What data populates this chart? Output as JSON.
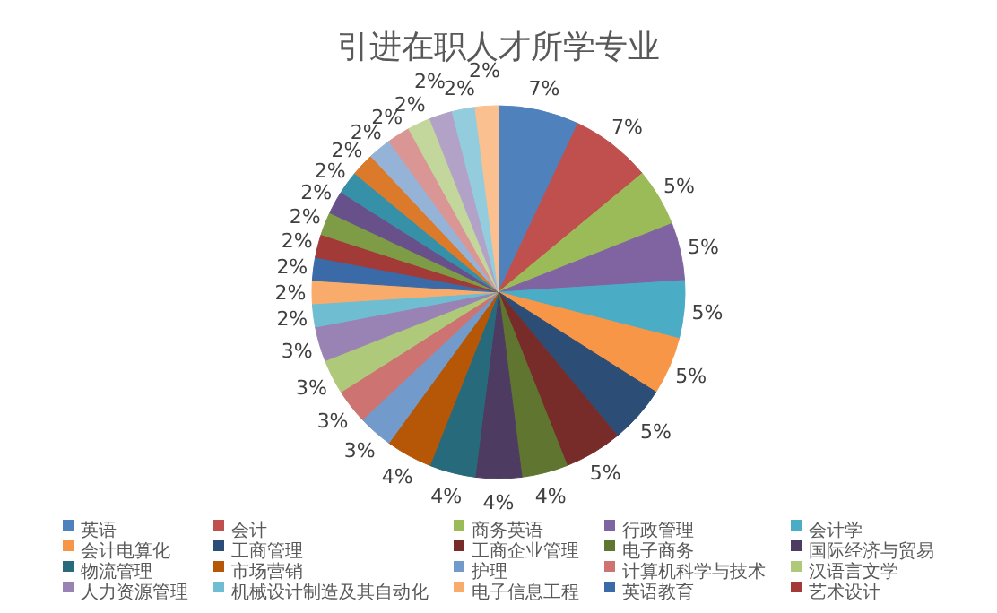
{
  "chart_data": {
    "type": "pie",
    "title": "引进在职人才所学专业",
    "categories": [
      "英语",
      "会计",
      "商务英语",
      "行政管理",
      "会计学",
      "会计电算化",
      "工商管理",
      "工商企业管理",
      "电子商务",
      "国际经济与贸易",
      "物流管理",
      "市场营销",
      "护理",
      "计算机科学与技术",
      "汉语言文学",
      "人力资源管理",
      "机械设计制造及其自动化",
      "电子信息工程",
      "英语教育",
      "艺术设计",
      null,
      null,
      null,
      null,
      null,
      null,
      null,
      null,
      null,
      null
    ],
    "values": [
      7,
      7,
      5,
      5,
      5,
      5,
      5,
      5,
      4,
      4,
      4,
      4,
      3,
      3,
      3,
      3,
      2,
      2,
      2,
      2,
      2,
      2,
      2,
      2,
      2,
      2,
      2,
      2,
      2,
      2
    ],
    "colors": [
      "#4f81bd",
      "#c0504d",
      "#9bbb59",
      "#8064a2",
      "#4bacc6",
      "#f79646",
      "#2c4d75",
      "#772c2a",
      "#5f7530",
      "#4d3b62",
      "#276a7c",
      "#b65708",
      "#729aca",
      "#cd7371",
      "#afc97a",
      "#9983b5",
      "#6fbdd1",
      "#f9ab6b",
      "#3a6aa8",
      "#a23a38",
      "#7e9c45",
      "#68508a",
      "#3590a8",
      "#dc7a2c",
      "#95b3d7",
      "#d99694",
      "#c3d69b",
      "#b3a2c7",
      "#93cddd",
      "#fac08f"
    ],
    "value_labels": [
      "7%",
      "7%",
      "5%",
      "5%",
      "5%",
      "5%",
      "5%",
      "5%",
      "4%",
      "4%",
      "4%",
      "4%",
      "3%",
      "3%",
      "3%",
      "3%",
      "2%",
      "2%",
      "2%",
      "2%",
      "2%",
      "2%",
      "2%",
      "2%",
      "2%",
      "2%",
      "2%",
      "2%",
      "2%",
      "2%"
    ],
    "data_labels": true,
    "legend": "bottom"
  }
}
